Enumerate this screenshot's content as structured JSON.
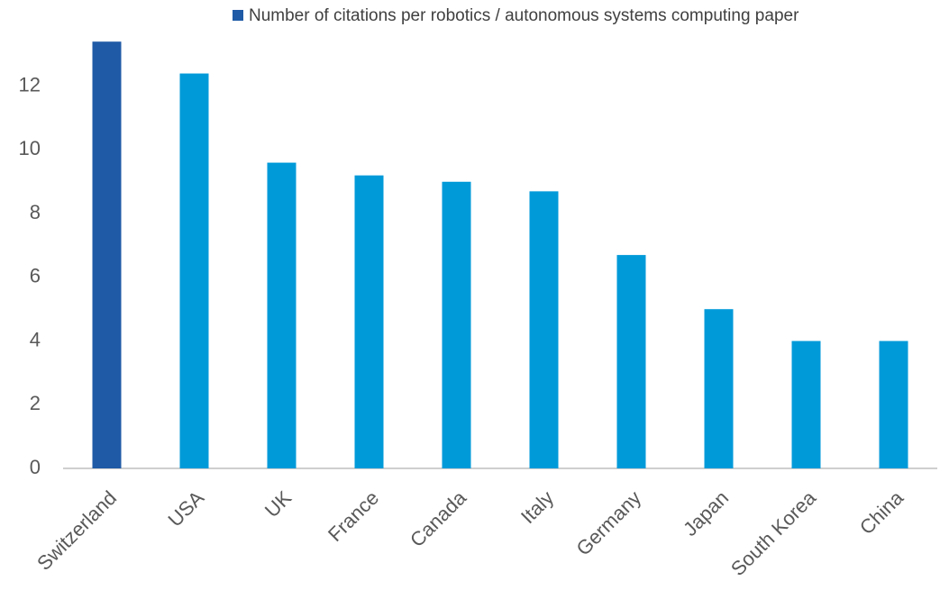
{
  "chart_data": {
    "type": "bar",
    "categories": [
      "Switzerland",
      "USA",
      "UK",
      "France",
      "Canada",
      "Italy",
      "Germany",
      "Japan",
      "South Korea",
      "China"
    ],
    "series": [
      {
        "name": "Number of citations per robotics / autonomous systems computing paper",
        "color": "#1f5aa6",
        "values": [
          13.4,
          12.4,
          9.6,
          9.2,
          9.0,
          8.7,
          6.7,
          5.0,
          4.0,
          4.0
        ],
        "colors": [
          "#1f5aa6",
          "#009ad9",
          "#009ad9",
          "#009ad9",
          "#009ad9",
          "#009ad9",
          "#009ad9",
          "#009ad9",
          "#009ad9",
          "#009ad9"
        ]
      }
    ],
    "ylim": [
      0,
      14
    ],
    "yticks": [
      0,
      2,
      4,
      6,
      8,
      10,
      12
    ],
    "grid": false,
    "legend": "top"
  }
}
